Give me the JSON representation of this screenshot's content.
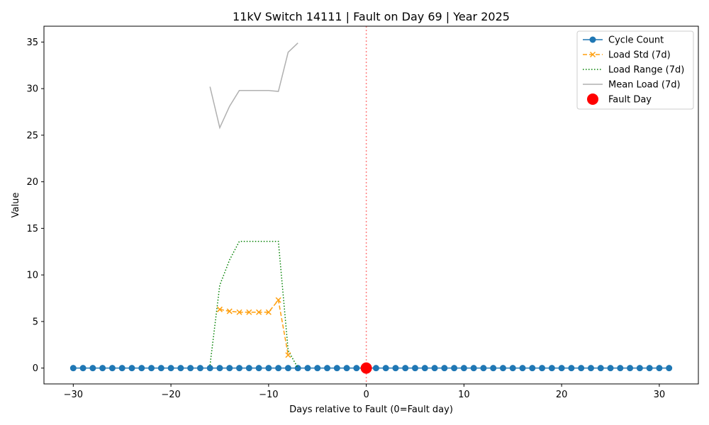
{
  "chart_data": {
    "type": "line",
    "title": "11kV Switch 14111 | Fault on Day 69 | Year 2025",
    "xlabel": "Days relative to Fault (0=Fault day)",
    "ylabel": "Value",
    "xlim": [
      -33,
      34
    ],
    "ylim": [
      -1.7,
      36.7
    ],
    "xticks": [
      -30,
      -20,
      -10,
      0,
      10,
      20,
      30
    ],
    "yticks": [
      0,
      5,
      10,
      15,
      20,
      25,
      30,
      35
    ],
    "grid": false,
    "legend_position": "top-right",
    "fault_line_x": 0,
    "series": [
      {
        "name": "Cycle Count",
        "style": "line-circle",
        "color": "#1f77b4",
        "x": [
          -30,
          -29,
          -28,
          -27,
          -26,
          -25,
          -24,
          -23,
          -22,
          -21,
          -20,
          -19,
          -18,
          -17,
          -16,
          -15,
          -14,
          -13,
          -12,
          -11,
          -10,
          -9,
          -8,
          -7,
          -6,
          -5,
          -4,
          -3,
          -2,
          -1,
          0,
          1,
          2,
          3,
          4,
          5,
          6,
          7,
          8,
          9,
          10,
          11,
          12,
          13,
          14,
          15,
          16,
          17,
          18,
          19,
          20,
          21,
          22,
          23,
          24,
          25,
          26,
          27,
          28,
          29,
          30,
          31
        ],
        "y": [
          0,
          0,
          0,
          0,
          0,
          0,
          0,
          0,
          0,
          0,
          0,
          0,
          0,
          0,
          0,
          0,
          0,
          0,
          0,
          0,
          0,
          0,
          0,
          0,
          0,
          0,
          0,
          0,
          0,
          0,
          0,
          0,
          0,
          0,
          0,
          0,
          0,
          0,
          0,
          0,
          0,
          0,
          0,
          0,
          0,
          0,
          0,
          0,
          0,
          0,
          0,
          0,
          0,
          0,
          0,
          0,
          0,
          0,
          0,
          0,
          0,
          0
        ]
      },
      {
        "name": "Load Std (7d)",
        "style": "dashed-x",
        "color": "#ff9f0e",
        "x": [
          -15,
          -14,
          -13,
          -12,
          -11,
          -10,
          -9,
          -8
        ],
        "y": [
          6.3,
          6.1,
          6.0,
          6.0,
          6.0,
          6.0,
          7.3,
          1.4
        ]
      },
      {
        "name": "Load Range (7d)",
        "style": "dotted",
        "color": "#008000",
        "x": [
          -16,
          -15,
          -14,
          -13,
          -12,
          -11,
          -10,
          -9,
          -8,
          -7
        ],
        "y": [
          0.3,
          8.9,
          11.6,
          13.6,
          13.6,
          13.6,
          13.6,
          13.6,
          1.9,
          0.0
        ]
      },
      {
        "name": "Mean Load (7d)",
        "style": "solid",
        "color": "#b0b0b0",
        "x": [
          -16,
          -15,
          -14,
          -13,
          -12,
          -11,
          -10,
          -9,
          -8,
          -7
        ],
        "y": [
          30.2,
          25.8,
          28.1,
          29.8,
          29.8,
          29.8,
          29.8,
          29.7,
          33.9,
          34.9
        ]
      },
      {
        "name": "Fault Day",
        "style": "marker",
        "color": "#ff0000",
        "x": [
          0
        ],
        "y": [
          0
        ]
      }
    ]
  }
}
